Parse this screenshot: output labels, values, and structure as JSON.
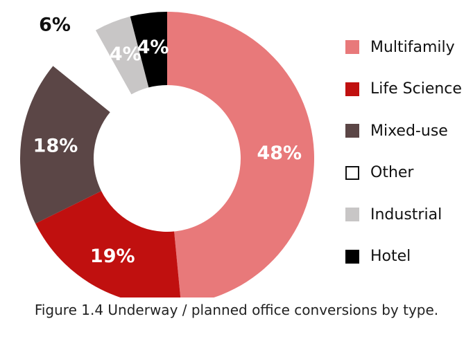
{
  "chart_data": {
    "type": "pie",
    "style": "donut",
    "categories": [
      "Multifamily",
      "Life Science",
      "Mixed-use",
      "Other",
      "Industrial",
      "Hotel"
    ],
    "values": [
      48,
      19,
      18,
      6,
      4,
      4
    ],
    "data_labels": [
      "48%",
      "19%",
      "18%",
      "6%",
      "4%",
      "4%"
    ],
    "colors": [
      "#e8797a",
      "#c0100f",
      "#5b4646",
      "#ffffff",
      "#c8c6c6",
      "#000000"
    ],
    "label_colors": [
      "#ffffff",
      "#ffffff",
      "#ffffff",
      "#111111",
      "#ffffff",
      "#ffffff"
    ],
    "exploded": [
      "Other"
    ],
    "legend_position": "right",
    "title": ""
  },
  "caption": "Figure 1.4 Underway / planned office conversions by type."
}
